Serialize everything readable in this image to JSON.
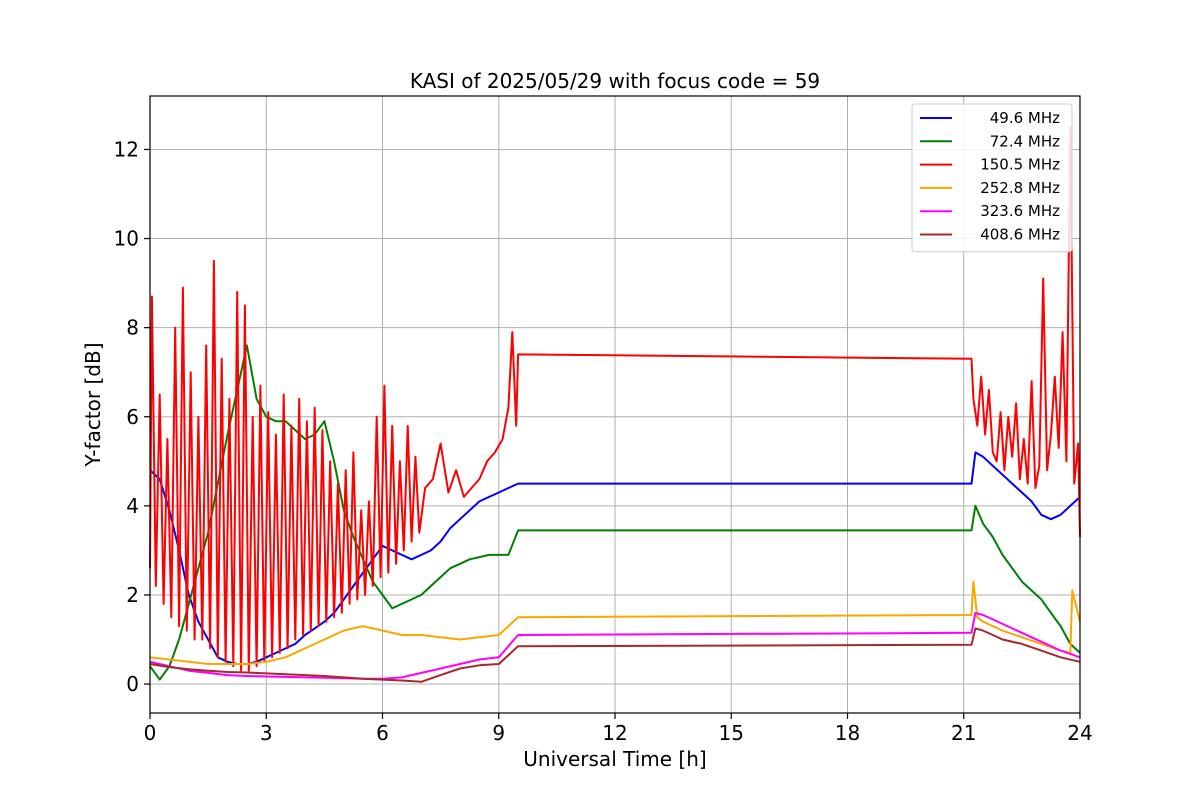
{
  "chart_data": {
    "type": "line",
    "title": "KASI of 2025/05/29 with focus code = 59",
    "xlabel": "Universal Time [h]",
    "ylabel": "Y-factor [dB]",
    "xlim": [
      0,
      24
    ],
    "ylim": [
      -0.65,
      13.2
    ],
    "xticks": [
      0,
      3,
      6,
      9,
      12,
      15,
      18,
      21,
      24
    ],
    "yticks": [
      0,
      2,
      4,
      6,
      8,
      10,
      12
    ],
    "grid": true,
    "legend_position": "top-right",
    "series": [
      {
        "name": "49.6 MHz",
        "color": "#0000ff",
        "x": [
          0,
          0.25,
          0.5,
          0.75,
          1.0,
          1.25,
          1.5,
          1.75,
          2.0,
          2.25,
          2.5,
          2.75,
          3.0,
          3.25,
          3.5,
          3.75,
          4.0,
          4.25,
          4.5,
          4.75,
          5.0,
          5.25,
          5.5,
          5.75,
          6.0,
          6.25,
          6.5,
          6.75,
          7.0,
          7.25,
          7.5,
          7.75,
          8.0,
          8.25,
          8.5,
          8.75,
          9.0,
          9.25,
          9.5,
          21.2,
          21.3,
          21.5,
          21.75,
          22.0,
          22.25,
          22.5,
          22.75,
          23.0,
          23.25,
          23.5,
          23.75,
          24.0
        ],
        "y": [
          4.8,
          4.6,
          3.9,
          3.0,
          2.0,
          1.4,
          1.0,
          0.6,
          0.5,
          0.45,
          0.45,
          0.5,
          0.6,
          0.7,
          0.8,
          0.9,
          1.1,
          1.25,
          1.4,
          1.6,
          1.9,
          2.2,
          2.5,
          2.8,
          3.1,
          3.0,
          2.9,
          2.8,
          2.9,
          3.0,
          3.2,
          3.5,
          3.7,
          3.9,
          4.1,
          4.2,
          4.3,
          4.4,
          4.5,
          4.5,
          5.2,
          5.1,
          4.9,
          4.7,
          4.5,
          4.3,
          4.1,
          3.8,
          3.7,
          3.8,
          4.0,
          4.2
        ]
      },
      {
        "name": "72.4 MHz",
        "color": "#008000",
        "x": [
          0,
          0.25,
          0.5,
          0.75,
          1.0,
          1.25,
          1.5,
          1.75,
          2.0,
          2.25,
          2.5,
          2.75,
          3.0,
          3.25,
          3.5,
          3.75,
          4.0,
          4.25,
          4.5,
          4.75,
          5.0,
          5.25,
          5.5,
          5.75,
          6.0,
          6.25,
          6.5,
          6.75,
          7.0,
          7.25,
          7.5,
          7.75,
          8.0,
          8.25,
          8.5,
          8.75,
          9.0,
          9.25,
          9.5,
          21.2,
          21.3,
          21.5,
          21.75,
          22.0,
          22.25,
          22.5,
          22.75,
          23.0,
          23.25,
          23.5,
          23.75,
          24.0
        ],
        "y": [
          0.4,
          0.1,
          0.4,
          1.0,
          1.8,
          2.6,
          3.4,
          4.5,
          5.6,
          6.6,
          7.6,
          6.4,
          6.0,
          5.9,
          5.9,
          5.7,
          5.5,
          5.6,
          5.9,
          5.0,
          3.9,
          3.3,
          2.8,
          2.3,
          2.0,
          1.7,
          1.8,
          1.9,
          2.0,
          2.2,
          2.4,
          2.6,
          2.7,
          2.8,
          2.85,
          2.9,
          2.9,
          2.9,
          3.45,
          3.45,
          4.0,
          3.6,
          3.3,
          2.9,
          2.6,
          2.3,
          2.1,
          1.9,
          1.6,
          1.3,
          0.9,
          0.7
        ]
      },
      {
        "name": "150.5 MHz",
        "color": "#ff0000",
        "x": [
          0,
          0.05,
          0.15,
          0.25,
          0.35,
          0.45,
          0.55,
          0.65,
          0.75,
          0.85,
          0.95,
          1.05,
          1.15,
          1.25,
          1.35,
          1.45,
          1.55,
          1.65,
          1.75,
          1.85,
          1.95,
          2.05,
          2.15,
          2.25,
          2.35,
          2.45,
          2.55,
          2.65,
          2.75,
          2.85,
          2.95,
          3.05,
          3.15,
          3.25,
          3.35,
          3.45,
          3.55,
          3.65,
          3.75,
          3.85,
          3.95,
          4.05,
          4.15,
          4.25,
          4.35,
          4.45,
          4.55,
          4.65,
          4.75,
          4.85,
          4.95,
          5.05,
          5.15,
          5.25,
          5.35,
          5.45,
          5.55,
          5.65,
          5.75,
          5.85,
          5.95,
          6.05,
          6.15,
          6.25,
          6.35,
          6.45,
          6.55,
          6.65,
          6.75,
          6.85,
          6.95,
          7.1,
          7.3,
          7.5,
          7.7,
          7.9,
          8.1,
          8.3,
          8.5,
          8.7,
          8.9,
          9.1,
          9.25,
          9.35,
          9.45,
          9.5,
          21.2,
          21.25,
          21.35,
          21.45,
          21.55,
          21.65,
          21.75,
          21.85,
          21.95,
          22.05,
          22.15,
          22.25,
          22.35,
          22.45,
          22.55,
          22.65,
          22.75,
          22.85,
          22.95,
          23.05,
          23.15,
          23.25,
          23.35,
          23.45,
          23.55,
          23.65,
          23.75,
          23.85,
          23.95,
          24.0
        ],
        "y": [
          2.6,
          8.7,
          2.2,
          6.5,
          1.8,
          5.5,
          1.5,
          8.0,
          1.3,
          8.9,
          1.2,
          7.0,
          1.0,
          6.0,
          1.0,
          7.6,
          0.8,
          9.5,
          0.6,
          7.3,
          0.5,
          6.4,
          0.4,
          8.8,
          0.3,
          8.5,
          0.3,
          6.0,
          0.4,
          6.7,
          0.5,
          6.1,
          0.6,
          5.6,
          0.7,
          6.5,
          0.8,
          5.8,
          1.0,
          6.4,
          1.1,
          5.9,
          1.2,
          6.2,
          1.3,
          5.7,
          1.4,
          5.0,
          1.5,
          4.5,
          1.6,
          4.8,
          1.8,
          5.2,
          1.9,
          3.9,
          2.0,
          4.1,
          2.2,
          6.0,
          2.4,
          6.7,
          2.5,
          5.8,
          2.7,
          5.0,
          3.0,
          5.8,
          3.2,
          5.1,
          3.4,
          4.4,
          4.6,
          5.4,
          4.3,
          4.8,
          4.2,
          4.4,
          4.6,
          5.0,
          5.2,
          5.5,
          6.2,
          7.9,
          5.8,
          7.4,
          7.3,
          6.4,
          5.8,
          6.9,
          5.6,
          6.6,
          5.2,
          5.0,
          6.1,
          4.8,
          6.0,
          5.1,
          6.3,
          4.6,
          5.5,
          4.5,
          6.8,
          4.4,
          4.9,
          9.1,
          4.8,
          5.6,
          6.9,
          5.3,
          7.9,
          5.0,
          12.5,
          4.5,
          5.4,
          3.3
        ]
      },
      {
        "name": "252.8 MHz",
        "color": "#ffa500",
        "x": [
          0,
          0.5,
          1.0,
          1.5,
          2.0,
          2.5,
          3.0,
          3.5,
          4.0,
          4.5,
          5.0,
          5.5,
          6.0,
          6.5,
          7.0,
          7.5,
          8.0,
          8.5,
          9.0,
          9.5,
          21.2,
          21.25,
          21.35,
          21.5,
          21.75,
          22.0,
          22.5,
          23.0,
          23.5,
          23.75,
          23.8,
          24.0
        ],
        "y": [
          0.6,
          0.55,
          0.5,
          0.45,
          0.45,
          0.45,
          0.5,
          0.6,
          0.8,
          1.0,
          1.2,
          1.3,
          1.2,
          1.1,
          1.1,
          1.05,
          1.0,
          1.05,
          1.1,
          1.5,
          1.55,
          2.3,
          1.5,
          1.4,
          1.3,
          1.2,
          1.05,
          0.9,
          0.75,
          0.7,
          2.1,
          1.4
        ]
      },
      {
        "name": "323.6 MHz",
        "color": "#ff00ff",
        "x": [
          0,
          0.5,
          1.0,
          1.5,
          2.0,
          2.5,
          3.0,
          3.5,
          4.0,
          4.5,
          5.0,
          5.5,
          6.0,
          6.5,
          7.0,
          7.5,
          8.0,
          8.5,
          9.0,
          9.5,
          21.2,
          21.3,
          21.5,
          21.75,
          22.0,
          22.5,
          23.0,
          23.5,
          24.0
        ],
        "y": [
          0.5,
          0.4,
          0.3,
          0.25,
          0.2,
          0.18,
          0.17,
          0.16,
          0.15,
          0.14,
          0.13,
          0.12,
          0.12,
          0.15,
          0.25,
          0.35,
          0.45,
          0.55,
          0.6,
          1.1,
          1.15,
          1.6,
          1.55,
          1.45,
          1.35,
          1.15,
          0.95,
          0.75,
          0.6
        ]
      },
      {
        "name": "408.6 MHz",
        "color": "#a52a2a",
        "x": [
          0,
          0.5,
          1.0,
          1.5,
          2.0,
          2.5,
          3.0,
          3.5,
          4.0,
          4.5,
          5.0,
          5.5,
          6.0,
          6.5,
          7.0,
          7.5,
          8.0,
          8.5,
          9.0,
          9.5,
          21.2,
          21.3,
          21.5,
          21.75,
          22.0,
          22.5,
          23.0,
          23.5,
          24.0
        ],
        "y": [
          0.45,
          0.38,
          0.33,
          0.3,
          0.27,
          0.26,
          0.24,
          0.22,
          0.2,
          0.18,
          0.15,
          0.12,
          0.1,
          0.08,
          0.05,
          0.2,
          0.35,
          0.42,
          0.45,
          0.85,
          0.88,
          1.25,
          1.2,
          1.1,
          1.0,
          0.9,
          0.75,
          0.6,
          0.5
        ]
      }
    ]
  }
}
